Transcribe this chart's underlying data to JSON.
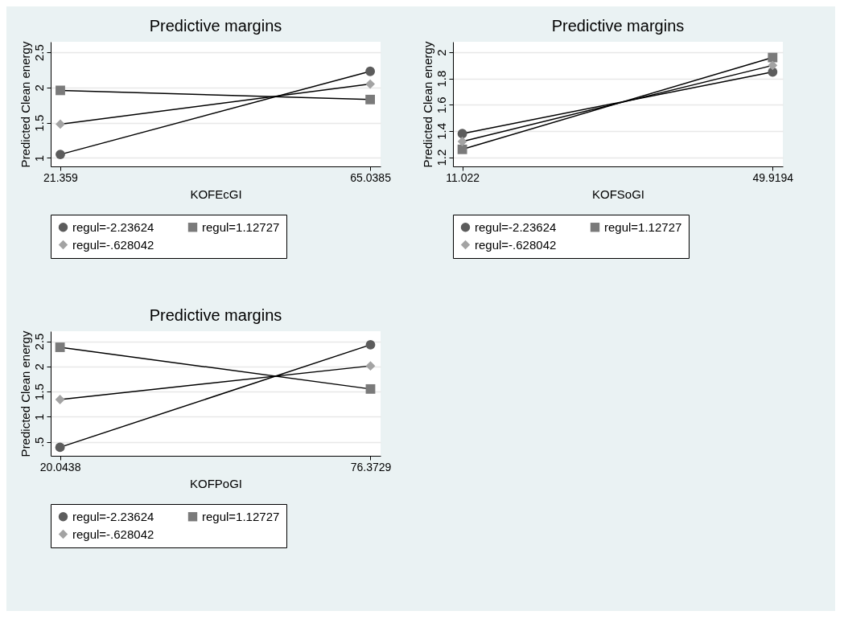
{
  "chart_data": [
    {
      "type": "line",
      "title": "Predictive margins",
      "xlabel": "KOFEcGI",
      "ylabel": "Predicted Clean energy",
      "x": [
        21.359,
        65.0385
      ],
      "xlim": [
        20.0,
        66.5
      ],
      "xticks": [
        21.359,
        65.0385
      ],
      "ylim": [
        0.88,
        2.65
      ],
      "yticks": [
        1,
        1.5,
        2,
        2.5
      ],
      "grid": "y",
      "legend": "bottom",
      "line_style": "solid",
      "series": [
        {
          "name": "regul=-2.23624",
          "color": "#5c5c5c",
          "marker": "circle",
          "values": [
            1.05,
            2.23
          ]
        },
        {
          "name": "regul=1.12727",
          "color": "#7a7a7a",
          "marker": "square",
          "values": [
            1.96,
            1.83
          ]
        },
        {
          "name": "regul=-.628042",
          "color": "#a3a3a3",
          "marker": "diamond",
          "values": [
            1.48,
            2.05
          ]
        }
      ]
    },
    {
      "type": "line",
      "title": "Predictive margins",
      "xlabel": "KOFSoGI",
      "ylabel": "Predicted Clean energy",
      "x": [
        11.022,
        49.9194
      ],
      "xlim": [
        9.85,
        51.2
      ],
      "xticks": [
        11.022,
        49.9194
      ],
      "ylim": [
        1.13,
        2.08
      ],
      "yticks": [
        1.2,
        1.4,
        1.6,
        1.8,
        2
      ],
      "grid": "y",
      "legend": "bottom",
      "line_style": "solid",
      "series": [
        {
          "name": "regul=-2.23624",
          "color": "#5c5c5c",
          "marker": "circle",
          "values": [
            1.38,
            1.85
          ]
        },
        {
          "name": "regul=1.12727",
          "color": "#7a7a7a",
          "marker": "square",
          "values": [
            1.26,
            1.96
          ]
        },
        {
          "name": "regul=-.628042",
          "color": "#a3a3a3",
          "marker": "diamond",
          "values": [
            1.32,
            1.9
          ]
        }
      ]
    },
    {
      "type": "line",
      "title": "Predictive margins",
      "xlabel": "KOFPoGI",
      "ylabel": "Predicted Clean energy",
      "x": [
        20.0438,
        76.3729
      ],
      "xlim": [
        18.35,
        78.2
      ],
      "xticks": [
        20.0438,
        76.3729
      ],
      "ylim": [
        0.22,
        2.7
      ],
      "yticks": [
        {
          "value": 0.5,
          "label": ".5"
        },
        1,
        1.5,
        2,
        2.5
      ],
      "grid": "y",
      "legend": "bottom",
      "line_style": "solid",
      "series": [
        {
          "name": "regul=-2.23624",
          "color": "#5c5c5c",
          "marker": "circle",
          "values": [
            0.39,
            2.43
          ]
        },
        {
          "name": "regul=1.12727",
          "color": "#7a7a7a",
          "marker": "square",
          "values": [
            2.38,
            1.55
          ]
        },
        {
          "name": "regul=-.628042",
          "color": "#a3a3a3",
          "marker": "diamond",
          "values": [
            1.34,
            2.01
          ]
        }
      ]
    }
  ]
}
